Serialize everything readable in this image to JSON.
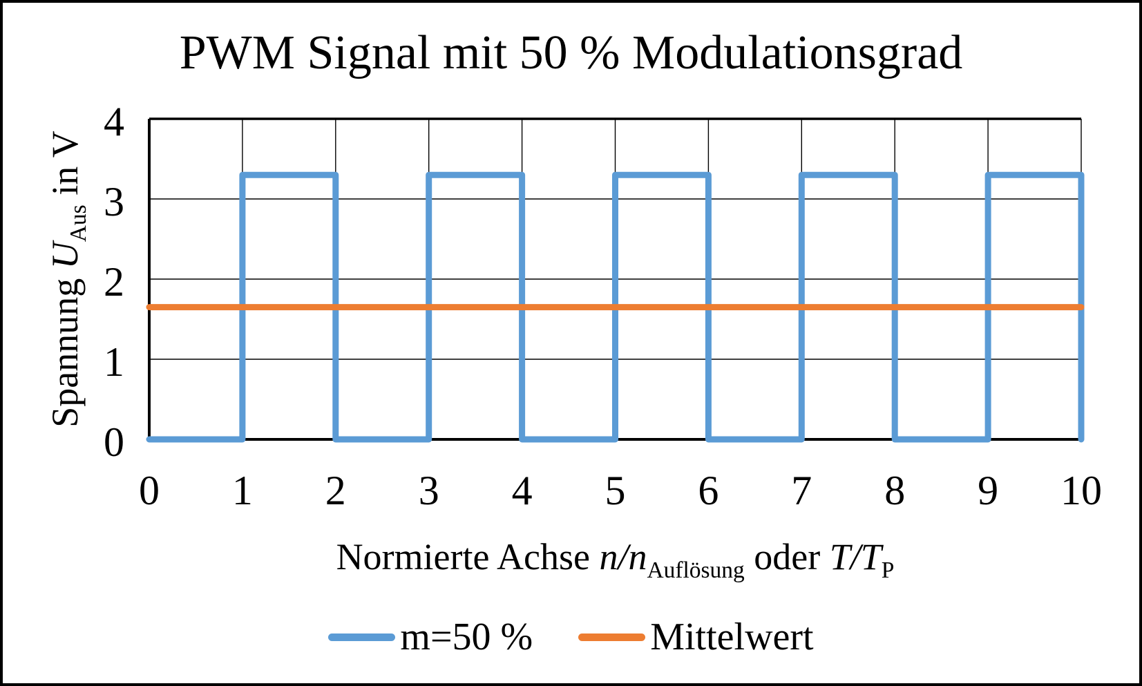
{
  "title": "PWM Signal mit 50 % Modulationsgrad",
  "axis_labels": {
    "y": {
      "text1": "Spannung ",
      "var1": "U",
      "sub1": "Aus",
      "text2": " in V"
    },
    "x": {
      "text1": "Normierte Achse ",
      "math1": "n/n",
      "sub1": "Auflösung",
      "text2": " oder ",
      "math2": "T/T",
      "sub2": "P"
    }
  },
  "legend": {
    "items": [
      {
        "label": "m=50 %",
        "color": "#5B9BD5"
      },
      {
        "label": "Mittelwert",
        "color": "#ED7D31"
      }
    ]
  },
  "colors": {
    "signal_blue": "#5B9BD5",
    "mean_orange": "#ED7D31",
    "axis_black": "#000000",
    "background": "#ffffff"
  },
  "chart_data": {
    "type": "line",
    "title": "PWM Signal mit 50 % Modulationsgrad",
    "xlabel": "Normierte Achse n/n_Auflösung oder T/T_P",
    "ylabel": "Spannung U_Aus in V",
    "xlim": [
      0,
      10
    ],
    "ylim": [
      0,
      4
    ],
    "xticks": [
      0,
      1,
      2,
      3,
      4,
      5,
      6,
      7,
      8,
      9,
      10
    ],
    "yticks": [
      0,
      1,
      2,
      3,
      4
    ],
    "grid": true,
    "legend_position": "bottom",
    "series": [
      {
        "name": "m=50 %",
        "color": "#5B9BD5",
        "stroke_width": 9,
        "type": "step",
        "high_level": 3.3,
        "low_level": 0,
        "duty_cycle_percent": 50,
        "points": [
          [
            0,
            0
          ],
          [
            1,
            0
          ],
          [
            1,
            3.3
          ],
          [
            2,
            3.3
          ],
          [
            2,
            0
          ],
          [
            3,
            0
          ],
          [
            3,
            3.3
          ],
          [
            4,
            3.3
          ],
          [
            4,
            0
          ],
          [
            5,
            0
          ],
          [
            5,
            3.3
          ],
          [
            6,
            3.3
          ],
          [
            6,
            0
          ],
          [
            7,
            0
          ],
          [
            7,
            3.3
          ],
          [
            8,
            3.3
          ],
          [
            8,
            0
          ],
          [
            9,
            0
          ],
          [
            9,
            3.3
          ],
          [
            10,
            3.3
          ],
          [
            10,
            0
          ]
        ]
      },
      {
        "name": "Mittelwert",
        "color": "#ED7D31",
        "stroke_width": 9,
        "type": "line",
        "value": 1.65,
        "points": [
          [
            0,
            1.65
          ],
          [
            10,
            1.65
          ]
        ]
      }
    ]
  }
}
